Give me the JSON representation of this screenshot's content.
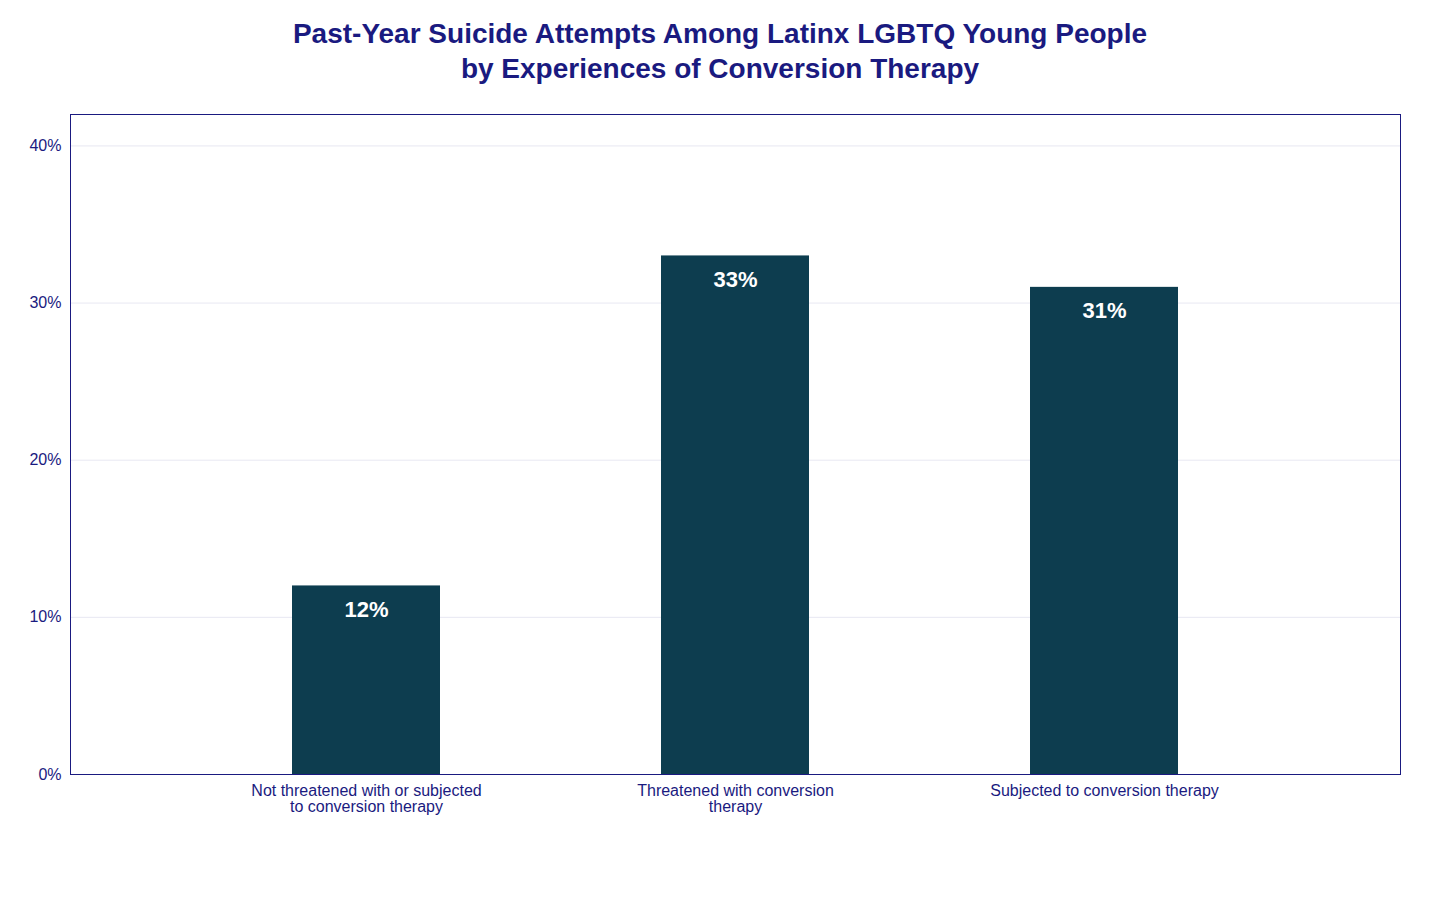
{
  "chart_data": {
    "type": "bar",
    "title": "Past-Year Suicide Attempts Among Latinx LGBTQ Young People\nby Experiences of Conversion Therapy",
    "categories": [
      "Not threatened with or subjected\nto conversion therapy",
      "Threatened with conversion\ntherapy",
      "Subjected to conversion therapy"
    ],
    "values": [
      12,
      33,
      31
    ],
    "value_labels": [
      "12%",
      "33%",
      "31%"
    ],
    "data_labels": true,
    "color": "#0d3d4f",
    "ylim": [
      0,
      42
    ],
    "yticks": [
      {
        "value": 0,
        "label": "0%"
      },
      {
        "value": 10,
        "label": "10%"
      },
      {
        "value": 20,
        "label": "20%"
      },
      {
        "value": 30,
        "label": "30%"
      },
      {
        "value": 40,
        "label": "40%"
      }
    ],
    "grid": true
  }
}
